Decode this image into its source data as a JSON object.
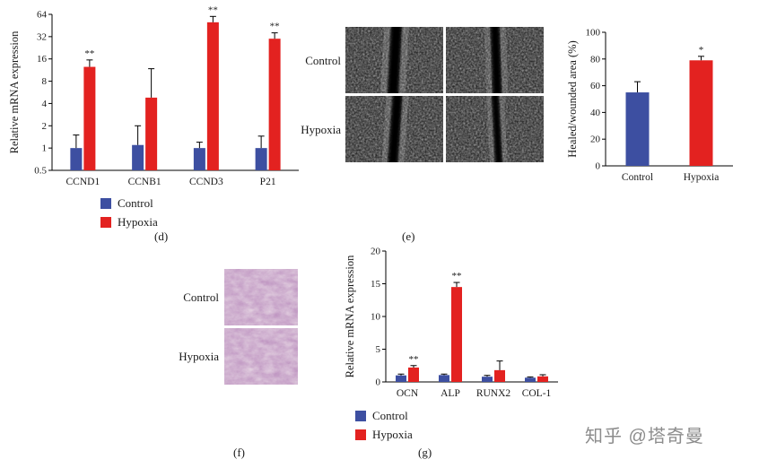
{
  "watermark": "知乎 @塔奇曼",
  "colors": {
    "control": "#3d4fa1",
    "hypoxia": "#e32220"
  },
  "legend": {
    "control": "Control",
    "hypoxia": "Hypoxia"
  },
  "panels": {
    "d": {
      "label": "(d)"
    },
    "e": {
      "label": "(e)",
      "row_labels": [
        "Control",
        "Hypoxia"
      ]
    },
    "f": {
      "label": "(f)",
      "row_labels": [
        "Control",
        "Hypoxia"
      ]
    },
    "g": {
      "label": "(g)"
    }
  },
  "chart_data": [
    {
      "id": "d",
      "type": "bar",
      "title": "",
      "ylabel": "Relative mRNA expression",
      "xlabel": "",
      "scale": "log2",
      "ylim": [
        0.5,
        64
      ],
      "yticks": [
        0.5,
        1,
        2,
        4,
        8,
        16,
        32,
        64
      ],
      "grid": false,
      "legend_position": "bottom-left",
      "categories": [
        "CCND1",
        "CCNB1",
        "CCND3",
        "P21"
      ],
      "series": [
        {
          "name": "Control",
          "color": "#3d4fa1",
          "values": [
            1.0,
            1.1,
            1.0,
            1.0
          ],
          "errors": [
            0.5,
            0.9,
            0.2,
            0.45
          ],
          "sig": [
            "",
            "",
            "",
            ""
          ]
        },
        {
          "name": "Hypoxia",
          "color": "#e32220",
          "values": [
            12.5,
            4.8,
            50,
            30
          ],
          "errors": [
            3,
            7,
            10,
            6
          ],
          "sig": [
            "**",
            "",
            "**",
            "**"
          ]
        }
      ]
    },
    {
      "id": "e",
      "type": "bar",
      "title": "",
      "ylabel": "Healed/wounded area (%)",
      "xlabel": "",
      "scale": "linear",
      "ylim": [
        0,
        100
      ],
      "yticks": [
        0,
        20,
        40,
        60,
        80,
        100
      ],
      "grid": false,
      "legend_position": "none",
      "categories": [
        "Control",
        "Hypoxia"
      ],
      "bars": [
        {
          "category": "Control",
          "value": 55,
          "error": 8,
          "color": "#3d4fa1",
          "sig": ""
        },
        {
          "category": "Hypoxia",
          "value": 79,
          "error": 3,
          "color": "#e32220",
          "sig": "*"
        }
      ]
    },
    {
      "id": "g",
      "type": "bar",
      "title": "",
      "ylabel": "Relative mRNA expression",
      "xlabel": "",
      "scale": "linear",
      "ylim": [
        0,
        20
      ],
      "yticks": [
        0,
        5,
        10,
        15,
        20
      ],
      "grid": false,
      "legend_position": "bottom-left",
      "categories": [
        "OCN",
        "ALP",
        "RUNX2",
        "COL-1"
      ],
      "series": [
        {
          "name": "Control",
          "color": "#3d4fa1",
          "values": [
            1.0,
            1.05,
            0.8,
            0.65
          ],
          "errors": [
            0.2,
            0.15,
            0.2,
            0.12
          ],
          "sig": [
            "",
            "",
            "",
            ""
          ]
        },
        {
          "name": "Hypoxia",
          "color": "#e32220",
          "values": [
            2.2,
            14.5,
            1.8,
            0.85
          ],
          "errors": [
            0.3,
            0.7,
            1.4,
            0.25
          ],
          "sig": [
            "**",
            "**",
            "",
            ""
          ]
        }
      ]
    }
  ]
}
